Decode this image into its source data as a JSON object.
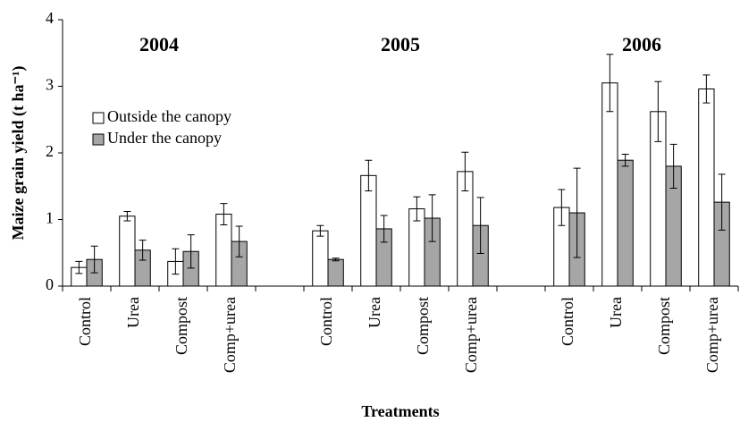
{
  "chart_data": {
    "type": "bar",
    "ylabel": "Maize grain yield (t ha⁻¹)",
    "xlabel": "Treatments",
    "annotations": [
      "2004",
      "2005",
      "2006"
    ],
    "categories": [
      "Control",
      "Urea",
      "Compost",
      "Comp+urea",
      null,
      "Control",
      "Urea",
      "Compost",
      "Comp+urea",
      null,
      "Control",
      "Urea",
      "Compost",
      "Comp+urea"
    ],
    "series": [
      {
        "name": "Outside the canopy",
        "color": "#ffffff",
        "values": [
          0.28,
          1.05,
          0.37,
          1.08,
          null,
          0.83,
          1.66,
          1.16,
          1.72,
          null,
          1.18,
          3.05,
          2.62,
          2.96
        ],
        "errors": [
          0.09,
          0.07,
          0.19,
          0.16,
          null,
          0.08,
          0.23,
          0.18,
          0.29,
          null,
          0.27,
          0.43,
          0.45,
          0.21
        ]
      },
      {
        "name": "Under the canopy",
        "color": "#a6a6a6",
        "values": [
          0.4,
          0.54,
          0.52,
          0.67,
          null,
          0.4,
          0.86,
          1.02,
          0.91,
          null,
          1.1,
          1.89,
          1.8,
          1.26
        ],
        "errors": [
          0.2,
          0.15,
          0.25,
          0.23,
          null,
          0.02,
          0.2,
          0.35,
          0.42,
          null,
          0.67,
          0.09,
          0.33,
          0.42
        ]
      }
    ],
    "ylim": [
      0,
      4
    ],
    "yticks": [
      0,
      1,
      2,
      3,
      4
    ],
    "grid": false,
    "legend": "upper-left"
  }
}
